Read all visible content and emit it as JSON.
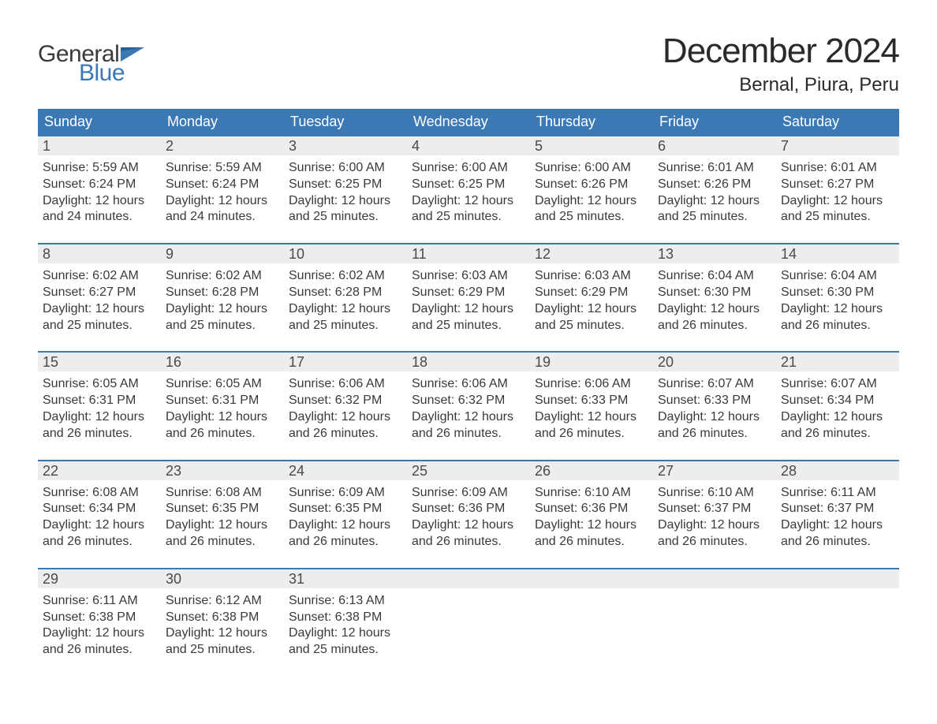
{
  "brand": {
    "general": "General",
    "blue": "Blue"
  },
  "title": "December 2024",
  "location": "Bernal, Piura, Peru",
  "colors": {
    "brand_blue": "#3c78b4",
    "header_bg": "#3c78b4",
    "header_text": "#ffffff",
    "daynum_bg": "#eceded",
    "text": "#3a3a3a",
    "week_border": "#3c78b4",
    "page_bg": "#ffffff"
  },
  "weekdays": [
    "Sunday",
    "Monday",
    "Tuesday",
    "Wednesday",
    "Thursday",
    "Friday",
    "Saturday"
  ],
  "weeks": [
    [
      {
        "n": "1",
        "lines": [
          "Sunrise: 5:59 AM",
          "Sunset: 6:24 PM",
          "Daylight: 12 hours",
          "and 24 minutes."
        ]
      },
      {
        "n": "2",
        "lines": [
          "Sunrise: 5:59 AM",
          "Sunset: 6:24 PM",
          "Daylight: 12 hours",
          "and 24 minutes."
        ]
      },
      {
        "n": "3",
        "lines": [
          "Sunrise: 6:00 AM",
          "Sunset: 6:25 PM",
          "Daylight: 12 hours",
          "and 25 minutes."
        ]
      },
      {
        "n": "4",
        "lines": [
          "Sunrise: 6:00 AM",
          "Sunset: 6:25 PM",
          "Daylight: 12 hours",
          "and 25 minutes."
        ]
      },
      {
        "n": "5",
        "lines": [
          "Sunrise: 6:00 AM",
          "Sunset: 6:26 PM",
          "Daylight: 12 hours",
          "and 25 minutes."
        ]
      },
      {
        "n": "6",
        "lines": [
          "Sunrise: 6:01 AM",
          "Sunset: 6:26 PM",
          "Daylight: 12 hours",
          "and 25 minutes."
        ]
      },
      {
        "n": "7",
        "lines": [
          "Sunrise: 6:01 AM",
          "Sunset: 6:27 PM",
          "Daylight: 12 hours",
          "and 25 minutes."
        ]
      }
    ],
    [
      {
        "n": "8",
        "lines": [
          "Sunrise: 6:02 AM",
          "Sunset: 6:27 PM",
          "Daylight: 12 hours",
          "and 25 minutes."
        ]
      },
      {
        "n": "9",
        "lines": [
          "Sunrise: 6:02 AM",
          "Sunset: 6:28 PM",
          "Daylight: 12 hours",
          "and 25 minutes."
        ]
      },
      {
        "n": "10",
        "lines": [
          "Sunrise: 6:02 AM",
          "Sunset: 6:28 PM",
          "Daylight: 12 hours",
          "and 25 minutes."
        ]
      },
      {
        "n": "11",
        "lines": [
          "Sunrise: 6:03 AM",
          "Sunset: 6:29 PM",
          "Daylight: 12 hours",
          "and 25 minutes."
        ]
      },
      {
        "n": "12",
        "lines": [
          "Sunrise: 6:03 AM",
          "Sunset: 6:29 PM",
          "Daylight: 12 hours",
          "and 25 minutes."
        ]
      },
      {
        "n": "13",
        "lines": [
          "Sunrise: 6:04 AM",
          "Sunset: 6:30 PM",
          "Daylight: 12 hours",
          "and 26 minutes."
        ]
      },
      {
        "n": "14",
        "lines": [
          "Sunrise: 6:04 AM",
          "Sunset: 6:30 PM",
          "Daylight: 12 hours",
          "and 26 minutes."
        ]
      }
    ],
    [
      {
        "n": "15",
        "lines": [
          "Sunrise: 6:05 AM",
          "Sunset: 6:31 PM",
          "Daylight: 12 hours",
          "and 26 minutes."
        ]
      },
      {
        "n": "16",
        "lines": [
          "Sunrise: 6:05 AM",
          "Sunset: 6:31 PM",
          "Daylight: 12 hours",
          "and 26 minutes."
        ]
      },
      {
        "n": "17",
        "lines": [
          "Sunrise: 6:06 AM",
          "Sunset: 6:32 PM",
          "Daylight: 12 hours",
          "and 26 minutes."
        ]
      },
      {
        "n": "18",
        "lines": [
          "Sunrise: 6:06 AM",
          "Sunset: 6:32 PM",
          "Daylight: 12 hours",
          "and 26 minutes."
        ]
      },
      {
        "n": "19",
        "lines": [
          "Sunrise: 6:06 AM",
          "Sunset: 6:33 PM",
          "Daylight: 12 hours",
          "and 26 minutes."
        ]
      },
      {
        "n": "20",
        "lines": [
          "Sunrise: 6:07 AM",
          "Sunset: 6:33 PM",
          "Daylight: 12 hours",
          "and 26 minutes."
        ]
      },
      {
        "n": "21",
        "lines": [
          "Sunrise: 6:07 AM",
          "Sunset: 6:34 PM",
          "Daylight: 12 hours",
          "and 26 minutes."
        ]
      }
    ],
    [
      {
        "n": "22",
        "lines": [
          "Sunrise: 6:08 AM",
          "Sunset: 6:34 PM",
          "Daylight: 12 hours",
          "and 26 minutes."
        ]
      },
      {
        "n": "23",
        "lines": [
          "Sunrise: 6:08 AM",
          "Sunset: 6:35 PM",
          "Daylight: 12 hours",
          "and 26 minutes."
        ]
      },
      {
        "n": "24",
        "lines": [
          "Sunrise: 6:09 AM",
          "Sunset: 6:35 PM",
          "Daylight: 12 hours",
          "and 26 minutes."
        ]
      },
      {
        "n": "25",
        "lines": [
          "Sunrise: 6:09 AM",
          "Sunset: 6:36 PM",
          "Daylight: 12 hours",
          "and 26 minutes."
        ]
      },
      {
        "n": "26",
        "lines": [
          "Sunrise: 6:10 AM",
          "Sunset: 6:36 PM",
          "Daylight: 12 hours",
          "and 26 minutes."
        ]
      },
      {
        "n": "27",
        "lines": [
          "Sunrise: 6:10 AM",
          "Sunset: 6:37 PM",
          "Daylight: 12 hours",
          "and 26 minutes."
        ]
      },
      {
        "n": "28",
        "lines": [
          "Sunrise: 6:11 AM",
          "Sunset: 6:37 PM",
          "Daylight: 12 hours",
          "and 26 minutes."
        ]
      }
    ],
    [
      {
        "n": "29",
        "lines": [
          "Sunrise: 6:11 AM",
          "Sunset: 6:38 PM",
          "Daylight: 12 hours",
          "and 26 minutes."
        ]
      },
      {
        "n": "30",
        "lines": [
          "Sunrise: 6:12 AM",
          "Sunset: 6:38 PM",
          "Daylight: 12 hours",
          "and 25 minutes."
        ]
      },
      {
        "n": "31",
        "lines": [
          "Sunrise: 6:13 AM",
          "Sunset: 6:38 PM",
          "Daylight: 12 hours",
          "and 25 minutes."
        ]
      },
      {
        "n": "",
        "lines": []
      },
      {
        "n": "",
        "lines": []
      },
      {
        "n": "",
        "lines": []
      },
      {
        "n": "",
        "lines": []
      }
    ]
  ]
}
